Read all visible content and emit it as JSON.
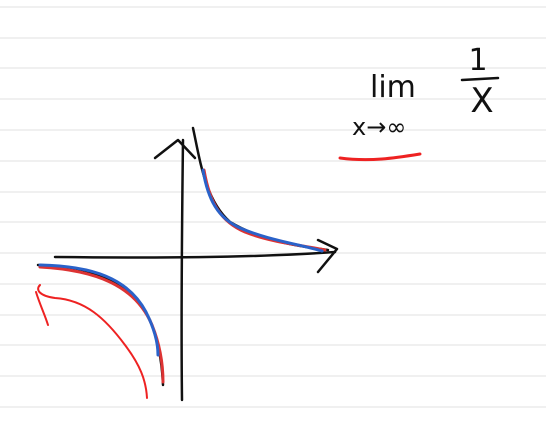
{
  "note": {
    "limit": "lim",
    "subscript": "x→∞",
    "numerator": "1",
    "denominator": "X"
  }
}
